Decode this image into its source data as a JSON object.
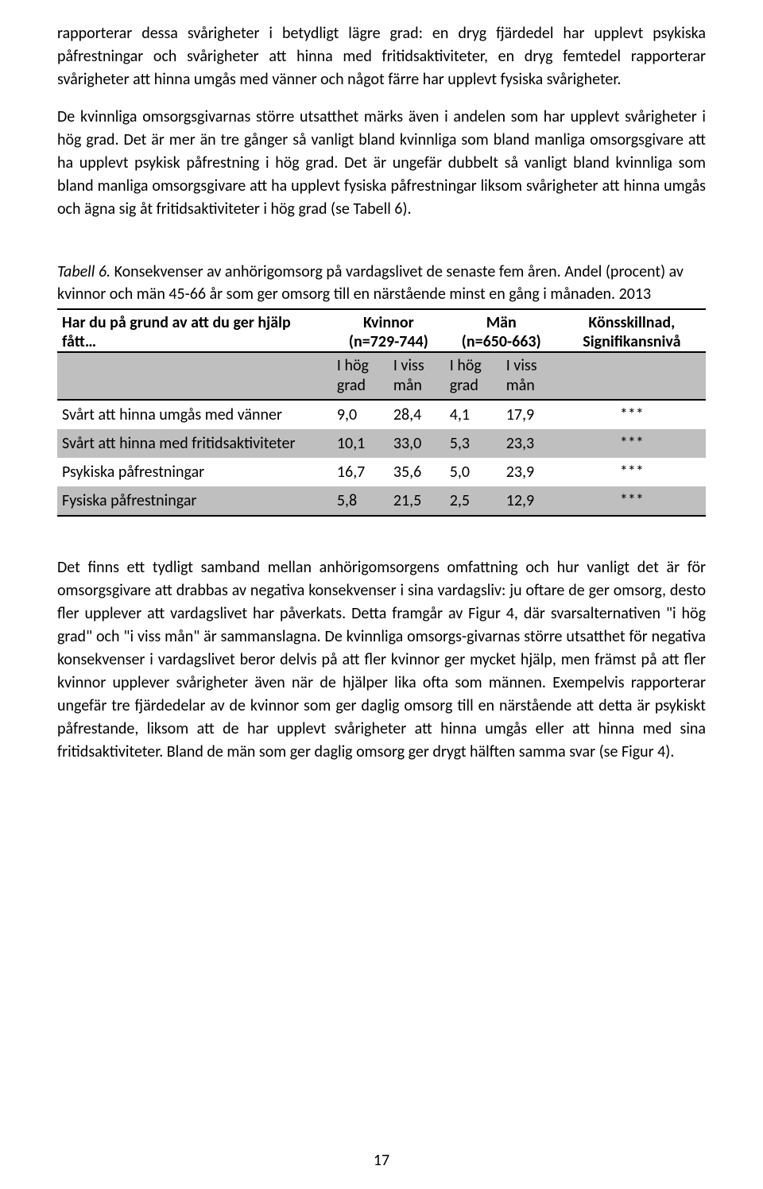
{
  "colors": {
    "background": "#ffffff",
    "text": "#000000",
    "tableShade": "#bfbfbf",
    "tableBorder": "#000000"
  },
  "typography": {
    "bodyFontSize": 20,
    "lineHeight": 1.45,
    "fontFamily": "Calibri"
  },
  "paragraphs": {
    "p1": "rapporterar dessa svårigheter i betydligt lägre grad: en dryg fjärdedel har upplevt psykiska påfrestningar och svårigheter att hinna med fritidsaktiviteter, en dryg femtedel rapporterar svårigheter att hinna umgås med vänner och något färre har upplevt fysiska svårigheter.",
    "p2": "De kvinnliga omsorgsgivarnas större utsatthet märks även i andelen som har upplevt svårigheter i hög grad. Det är mer än tre gånger så vanligt bland kvinnliga som bland manliga omsorgsgivare att ha upplevt psykisk påfrestning i hög grad. Det är ungefär dubbelt så vanligt bland kvinnliga som bland manliga omsorgsgivare att ha upplevt fysiska påfrestningar liksom svårigheter att hinna umgås och ägna sig åt fritidsaktiviteter i hög grad (se Tabell 6).",
    "p3": "Det finns ett tydligt samband mellan anhörigomsorgens omfattning och hur vanligt det är för omsorgsgivare att drabbas av negativa konsekvenser i sina vardagsliv: ju oftare de ger omsorg, desto fler upplever att vardagslivet har påverkats. Detta framgår av Figur 4, där svarsalternativen \"i hög grad\" och \"i viss mån\" är sammanslagna. De kvinnliga omsorgs-givarnas större utsatthet för negativa konsekvenser i vardagslivet beror delvis på att fler kvinnor ger mycket hjälp, men främst på att fler kvinnor upplever svårigheter även när de hjälper lika ofta som männen. Exempelvis rapporterar ungefär tre fjärdedelar av de kvinnor som ger daglig omsorg till en närstående att detta är psykiskt påfrestande, liksom att de har upplevt svårigheter att hinna umgås eller att hinna med sina fritidsaktiviteter. Bland de män som ger daglig omsorg ger drygt hälften samma svar (se Figur 4)."
  },
  "table": {
    "captionLead": "Tabell 6.",
    "captionRest": " Konsekvenser av anhörigomsorg på vardagslivet de senaste fem åren. Andel (procent) av kvinnor och män 45-66 år som ger omsorg till en närstående minst en gång i månaden. 2013",
    "headerQuestion": "Har du på grund av att du ger hjälp fått…",
    "womenHeader": "Kvinnor",
    "womenN": "(n=729-744)",
    "menHeader": "Män",
    "menN": "(n=650-663)",
    "sigHeader": "Könsskillnad,",
    "sigHeaderSub": "Signifikansnivå",
    "subHigh1": "I hög",
    "subHigh2": "grad",
    "subSome1": "I viss",
    "subSome2": "mån",
    "rows": [
      {
        "label": "Svårt att hinna umgås med vänner",
        "wh": "9,0",
        "ws": "28,4",
        "mh": "4,1",
        "ms": "17,9",
        "sig": "***",
        "shade": false
      },
      {
        "label": "Svårt att hinna med fritidsaktiviteter",
        "wh": "10,1",
        "ws": "33,0",
        "mh": "5,3",
        "ms": "23,3",
        "sig": "***",
        "shade": true
      },
      {
        "label": "Psykiska påfrestningar",
        "wh": "16,7",
        "ws": "35,6",
        "mh": "5,0",
        "ms": "23,9",
        "sig": "***",
        "shade": false
      },
      {
        "label": "Fysiska påfrestningar",
        "wh": "5,8",
        "ws": "21,5",
        "mh": "2,5",
        "ms": "12,9",
        "sig": "***",
        "shade": true
      }
    ]
  },
  "pageNumber": "17"
}
